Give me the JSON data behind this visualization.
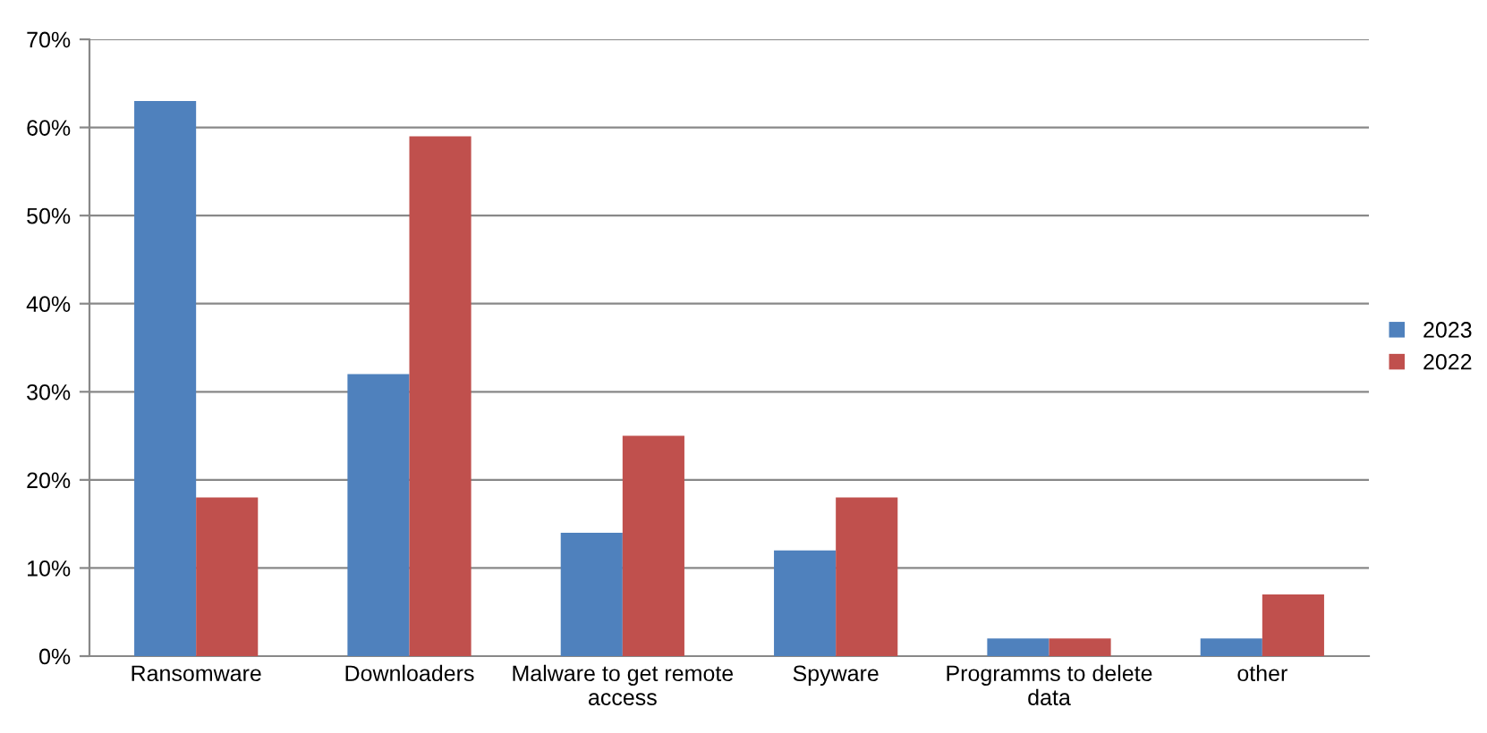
{
  "chart_data": {
    "type": "bar",
    "categories": [
      "Ransomware",
      "Downloaders",
      "Malware to get remote access",
      "Spyware",
      "Programms to delete data",
      "other"
    ],
    "series": [
      {
        "name": "2023",
        "color": "#4f81bd",
        "values": [
          63,
          32,
          14,
          12,
          2,
          2
        ]
      },
      {
        "name": "2022",
        "color": "#c0504d",
        "values": [
          18,
          59,
          25,
          18,
          2,
          7
        ]
      }
    ],
    "ylim": [
      0,
      70
    ],
    "yticks": [
      {
        "value": 0,
        "label": "0%"
      },
      {
        "value": 10,
        "label": "10%"
      },
      {
        "value": 20,
        "label": "20%"
      },
      {
        "value": 30,
        "label": "30%"
      },
      {
        "value": 40,
        "label": "40%"
      },
      {
        "value": 50,
        "label": "50%"
      },
      {
        "value": 60,
        "label": "60%"
      },
      {
        "value": 70,
        "label": "70%"
      }
    ],
    "grid": "y",
    "legend": "right"
  }
}
